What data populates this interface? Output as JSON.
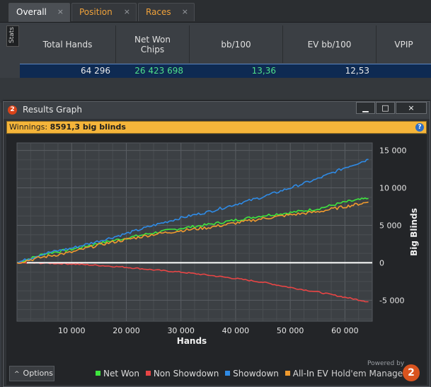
{
  "tabs": [
    {
      "label": "Overall",
      "active": true
    },
    {
      "label": "Position",
      "active": false
    },
    {
      "label": "Races",
      "active": false
    }
  ],
  "tab_close": "×",
  "stats_side_label": "Stats",
  "grid": {
    "headers": [
      "Total Hands",
      "Net Won Chips",
      "bb/100",
      "EV bb/100",
      "VPIP"
    ],
    "row": {
      "total_hands": "64 296",
      "net_won": "26 423 698",
      "bb100": "13,36",
      "ev_bb100": "12,53"
    }
  },
  "window": {
    "title": "Results Graph",
    "icon_text": "2",
    "buttons": {
      "minimize": "▁",
      "maximize": "□",
      "close": "×"
    },
    "winnings_label": "Winnings:",
    "winnings_value": "8591,3 big blinds",
    "help": "?"
  },
  "footer": {
    "options_label": "Options",
    "options_caret": "^",
    "powered_by": "Powered by",
    "brand": "Hold'em Manager",
    "brand_logo": "2"
  },
  "colors": {
    "net_won": "#3ee63e",
    "non_showdown": "#e84545",
    "showdown": "#2f8be6",
    "all_in_ev": "#f09a2e",
    "zero_line": "#ffffff"
  },
  "chart_data": {
    "type": "line",
    "xlabel": "Hands",
    "ylabel": "Big Blinds",
    "xlim": [
      0,
      65000
    ],
    "ylim": [
      -7800,
      16000
    ],
    "x_ticks": [
      10000,
      20000,
      30000,
      40000,
      50000,
      60000
    ],
    "x_tick_labels": [
      "10 000",
      "20 000",
      "30 000",
      "40 000",
      "50 000",
      "60 000"
    ],
    "y_ticks": [
      15000,
      10000,
      5000,
      0,
      -5000
    ],
    "y_tick_labels": [
      "15 000",
      "10 000",
      "5 000",
      "0",
      "-5 000"
    ],
    "grid": true,
    "legend_position": "bottom",
    "x": [
      0,
      5000,
      10000,
      15000,
      20000,
      25000,
      30000,
      35000,
      40000,
      45000,
      50000,
      55000,
      60000,
      64296
    ],
    "series": [
      {
        "name": "Net Won",
        "values": [
          0,
          1200,
          1800,
          2600,
          3300,
          4000,
          4600,
          5100,
          5700,
          6300,
          6700,
          7200,
          8100,
          8600
        ]
      },
      {
        "name": "Non Showdown",
        "values": [
          0,
          -50,
          -150,
          -350,
          -600,
          -950,
          -1250,
          -1650,
          -2100,
          -2600,
          -3300,
          -3900,
          -4600,
          -5200
        ]
      },
      {
        "name": "Showdown",
        "values": [
          0,
          1250,
          1950,
          2900,
          3900,
          5000,
          6000,
          6800,
          7800,
          8800,
          10000,
          11200,
          12700,
          13800
        ]
      },
      {
        "name": "All-In EV",
        "values": [
          0,
          800,
          1400,
          2400,
          3100,
          3800,
          4300,
          4700,
          5300,
          5900,
          6400,
          6800,
          7500,
          8100
        ]
      }
    ]
  }
}
